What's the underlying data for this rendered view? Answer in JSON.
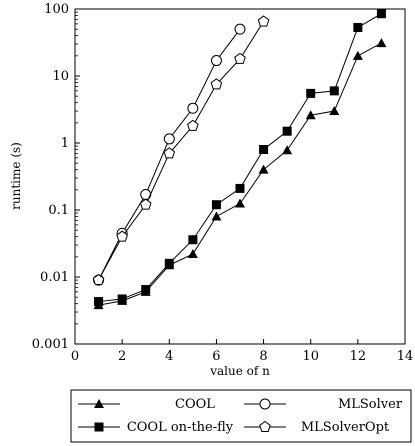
{
  "chart_data": {
    "type": "line",
    "xlabel": "value of n",
    "ylabel": "runtime (s)",
    "xlim": [
      0,
      14
    ],
    "ylim": [
      0.001,
      100
    ],
    "yscale": "log",
    "grid": false,
    "legend_position": "bottom",
    "x_ticks": [
      {
        "v": 0,
        "label": "0"
      },
      {
        "v": 2,
        "label": "2"
      },
      {
        "v": 4,
        "label": "4"
      },
      {
        "v": 6,
        "label": "6"
      },
      {
        "v": 8,
        "label": "8"
      },
      {
        "v": 10,
        "label": "10"
      },
      {
        "v": 12,
        "label": "12"
      },
      {
        "v": 14,
        "label": "14"
      }
    ],
    "y_ticks": [
      {
        "v": 0.001,
        "label": "0.001"
      },
      {
        "v": 0.01,
        "label": "0.01"
      },
      {
        "v": 0.1,
        "label": "0.1"
      },
      {
        "v": 1,
        "label": "1"
      },
      {
        "v": 10,
        "label": "10"
      },
      {
        "v": 100,
        "label": "100"
      }
    ],
    "series": [
      {
        "name": "COOL",
        "marker": "triangle",
        "color": "#000000",
        "x": [
          1,
          2,
          3,
          4,
          5,
          6,
          7,
          8,
          9,
          10,
          11,
          12,
          13
        ],
        "y": [
          0.0038,
          0.0044,
          0.006,
          0.015,
          0.022,
          0.08,
          0.125,
          0.4,
          0.78,
          2.6,
          3.0,
          20,
          31
        ]
      },
      {
        "name": "COOL on-the-fly",
        "marker": "square",
        "color": "#000000",
        "x": [
          1,
          2,
          3,
          4,
          5,
          6,
          7,
          8,
          9,
          10,
          11,
          12,
          13
        ],
        "y": [
          0.0043,
          0.0047,
          0.0065,
          0.016,
          0.036,
          0.12,
          0.21,
          0.8,
          1.5,
          5.5,
          6.0,
          53,
          85
        ]
      },
      {
        "name": "MLSolver",
        "marker": "circle",
        "color": "#000000",
        "x": [
          1,
          2,
          3,
          4,
          5,
          6,
          7
        ],
        "y": [
          0.009,
          0.045,
          0.17,
          1.15,
          3.3,
          17,
          50
        ]
      },
      {
        "name": "MLSolverOpt",
        "marker": "pentagon",
        "color": "#000000",
        "x": [
          1,
          2,
          3,
          4,
          5,
          6,
          7,
          8
        ],
        "y": [
          0.009,
          0.04,
          0.12,
          0.7,
          1.8,
          7.5,
          18,
          65
        ]
      }
    ]
  }
}
